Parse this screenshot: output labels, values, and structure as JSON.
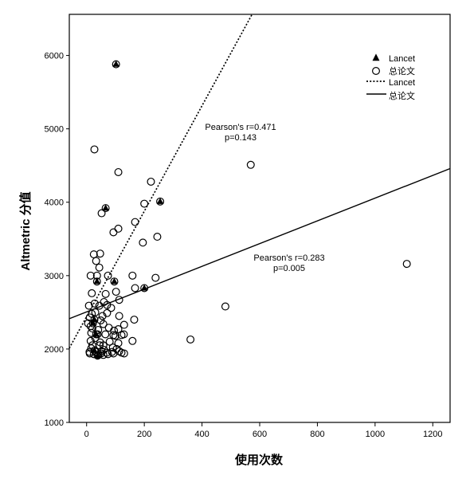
{
  "chart_data": {
    "type": "scatter",
    "xlabel": "使用次数",
    "ylabel": "Altmetric 分值",
    "xlim": [
      -60,
      1260
    ],
    "ylim": [
      1000,
      6560
    ],
    "xticks": [
      0,
      200,
      400,
      600,
      800,
      1000,
      1200
    ],
    "yticks": [
      1000,
      2000,
      3000,
      4000,
      5000,
      6000
    ],
    "grid": false,
    "legend_position": "top-right",
    "series": [
      {
        "name": "Lancet",
        "marker": "filled-triangle",
        "points": [
          [
            102,
            5880
          ],
          [
            66,
            3920
          ],
          [
            255,
            4010
          ],
          [
            200,
            2830
          ],
          [
            96,
            2920
          ],
          [
            36,
            2920
          ],
          [
            27,
            2400
          ],
          [
            22,
            2350
          ],
          [
            33,
            2200
          ],
          [
            27,
            1980
          ],
          [
            38,
            1910
          ]
        ]
      },
      {
        "name": "总论文",
        "marker": "open-circle",
        "points": [
          [
            102,
            5880
          ],
          [
            66,
            3920
          ],
          [
            255,
            4010
          ],
          [
            200,
            2830
          ],
          [
            96,
            2920
          ],
          [
            36,
            2920
          ],
          [
            27,
            2400
          ],
          [
            22,
            2350
          ],
          [
            33,
            2200
          ],
          [
            27,
            1980
          ],
          [
            38,
            1910
          ],
          [
            27,
            4720
          ],
          [
            110,
            4410
          ],
          [
            223,
            4280
          ],
          [
            569,
            4510
          ],
          [
            200,
            3980
          ],
          [
            52,
            3850
          ],
          [
            168,
            3730
          ],
          [
            110,
            3640
          ],
          [
            93,
            3590
          ],
          [
            195,
            3450
          ],
          [
            245,
            3530
          ],
          [
            1110,
            3160
          ],
          [
            25,
            3290
          ],
          [
            47,
            3300
          ],
          [
            33,
            3200
          ],
          [
            44,
            3110
          ],
          [
            14,
            3000
          ],
          [
            36,
            3000
          ],
          [
            74,
            3000
          ],
          [
            159,
            3000
          ],
          [
            239,
            2970
          ],
          [
            168,
            2830
          ],
          [
            102,
            2780
          ],
          [
            66,
            2750
          ],
          [
            8,
            2590
          ],
          [
            44,
            2590
          ],
          [
            71,
            2600
          ],
          [
            113,
            2670
          ],
          [
            481,
            2580
          ],
          [
            30,
            2500
          ],
          [
            71,
            2490
          ],
          [
            113,
            2450
          ],
          [
            11,
            2430
          ],
          [
            49,
            2390
          ],
          [
            165,
            2400
          ],
          [
            14,
            2310
          ],
          [
            58,
            2340
          ],
          [
            77,
            2290
          ],
          [
            110,
            2270
          ],
          [
            16,
            2220
          ],
          [
            38,
            2200
          ],
          [
            93,
            2190
          ],
          [
            121,
            2190
          ],
          [
            129,
            2200
          ],
          [
            47,
            2090
          ],
          [
            14,
            2110
          ],
          [
            159,
            2110
          ],
          [
            360,
            2130
          ],
          [
            16,
            2010
          ],
          [
            58,
            2050
          ],
          [
            91,
            2020
          ],
          [
            104,
            2000
          ],
          [
            113,
            1970
          ],
          [
            11,
            1940
          ],
          [
            25,
            1930
          ],
          [
            41,
            1920
          ],
          [
            58,
            1920
          ],
          [
            74,
            1930
          ],
          [
            93,
            1940
          ],
          [
            121,
            1950
          ],
          [
            52,
            1970
          ],
          [
            33,
            1960
          ],
          [
            5,
            2350
          ],
          [
            20,
            2280
          ],
          [
            30,
            2150
          ],
          [
            45,
            2050
          ],
          [
            60,
            1990
          ],
          [
            80,
            2100
          ],
          [
            88,
            1960
          ],
          [
            100,
            2180
          ],
          [
            18,
            2480
          ],
          [
            40,
            2260
          ],
          [
            55,
            2450
          ],
          [
            65,
            2200
          ],
          [
            85,
            2560
          ],
          [
            110,
            2080
          ],
          [
            20,
            2050
          ],
          [
            10,
            1960
          ],
          [
            50,
            1940
          ],
          [
            70,
            1950
          ],
          [
            95,
            2250
          ],
          [
            130,
            1940
          ],
          [
            28,
            2620
          ],
          [
            60,
            2640
          ],
          [
            18,
            2760
          ],
          [
            130,
            2330
          ]
        ]
      }
    ],
    "fit_lines": [
      {
        "name": "Lancet",
        "style": "dotted",
        "intercept": 2442,
        "slope": 7.18,
        "label": [
          "Pearson's r=0.471",
          "p=0.143"
        ]
      },
      {
        "name": "总论文",
        "style": "solid",
        "intercept": 2506,
        "slope": 1.55,
        "label": [
          "Pearson's r=0.283",
          "p=0.005"
        ]
      }
    ]
  }
}
